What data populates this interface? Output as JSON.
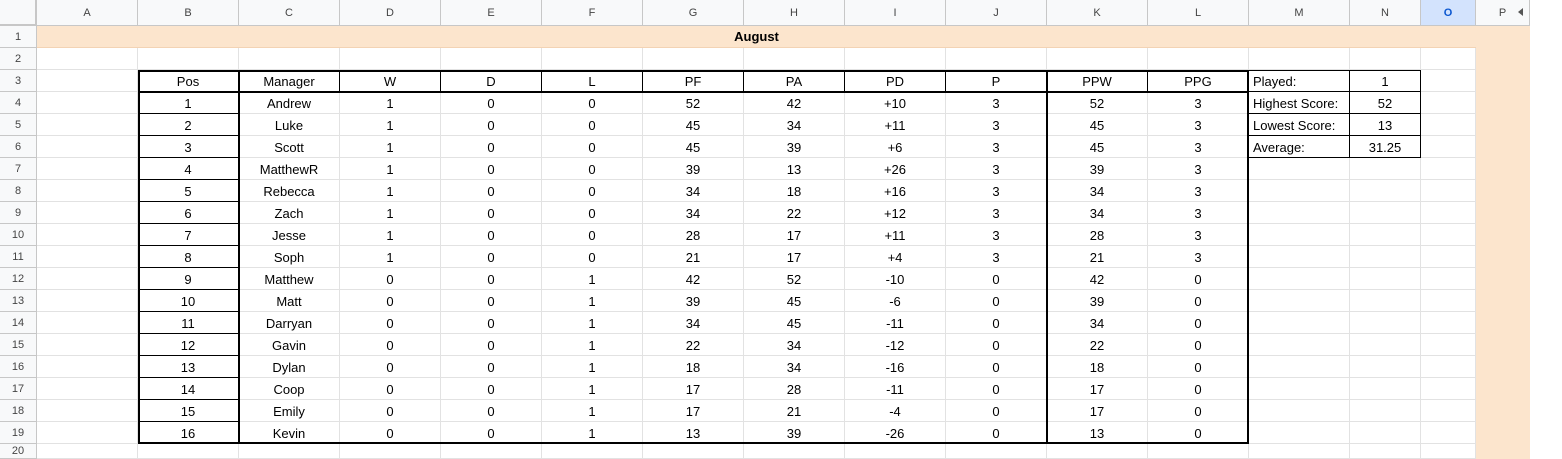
{
  "columns": [
    "A",
    "B",
    "C",
    "D",
    "E",
    "F",
    "G",
    "H",
    "I",
    "J",
    "K",
    "L",
    "M",
    "N",
    "O",
    "P"
  ],
  "selected_column": "O",
  "rows": [
    "1",
    "2",
    "3",
    "4",
    "5",
    "6",
    "7",
    "8",
    "9",
    "10",
    "11",
    "12",
    "13",
    "14",
    "15",
    "16",
    "17",
    "18",
    "19",
    "20"
  ],
  "title": "August",
  "table": {
    "headers": [
      "Pos",
      "Manager",
      "W",
      "D",
      "L",
      "PF",
      "PA",
      "PD",
      "P",
      "PPW",
      "PPG"
    ],
    "rows": [
      [
        "1",
        "Andrew",
        "1",
        "0",
        "0",
        "52",
        "42",
        "+10",
        "3",
        "52",
        "3"
      ],
      [
        "2",
        "Luke",
        "1",
        "0",
        "0",
        "45",
        "34",
        "+11",
        "3",
        "45",
        "3"
      ],
      [
        "3",
        "Scott",
        "1",
        "0",
        "0",
        "45",
        "39",
        "+6",
        "3",
        "45",
        "3"
      ],
      [
        "4",
        "MatthewR",
        "1",
        "0",
        "0",
        "39",
        "13",
        "+26",
        "3",
        "39",
        "3"
      ],
      [
        "5",
        "Rebecca",
        "1",
        "0",
        "0",
        "34",
        "18",
        "+16",
        "3",
        "34",
        "3"
      ],
      [
        "6",
        "Zach",
        "1",
        "0",
        "0",
        "34",
        "22",
        "+12",
        "3",
        "34",
        "3"
      ],
      [
        "7",
        "Jesse",
        "1",
        "0",
        "0",
        "28",
        "17",
        "+11",
        "3",
        "28",
        "3"
      ],
      [
        "8",
        "Soph",
        "1",
        "0",
        "0",
        "21",
        "17",
        "+4",
        "3",
        "21",
        "3"
      ],
      [
        "9",
        "Matthew",
        "0",
        "0",
        "1",
        "42",
        "52",
        "-10",
        "0",
        "42",
        "0"
      ],
      [
        "10",
        "Matt",
        "0",
        "0",
        "1",
        "39",
        "45",
        "-6",
        "0",
        "39",
        "0"
      ],
      [
        "11",
        "Darryan",
        "0",
        "0",
        "1",
        "34",
        "45",
        "-11",
        "0",
        "34",
        "0"
      ],
      [
        "12",
        "Gavin",
        "0",
        "0",
        "1",
        "22",
        "34",
        "-12",
        "0",
        "22",
        "0"
      ],
      [
        "13",
        "Dylan",
        "0",
        "0",
        "1",
        "18",
        "34",
        "-16",
        "0",
        "18",
        "0"
      ],
      [
        "14",
        "Coop",
        "0",
        "0",
        "1",
        "17",
        "28",
        "-11",
        "0",
        "17",
        "0"
      ],
      [
        "15",
        "Emily",
        "0",
        "0",
        "1",
        "17",
        "21",
        "-4",
        "0",
        "17",
        "0"
      ],
      [
        "16",
        "Kevin",
        "0",
        "0",
        "1",
        "13",
        "39",
        "-26",
        "0",
        "13",
        "0"
      ]
    ]
  },
  "stats": [
    {
      "label": "Played:",
      "value": "1"
    },
    {
      "label": "Highest Score:",
      "value": "52"
    },
    {
      "label": "Lowest Score:",
      "value": "13"
    },
    {
      "label": "Average:",
      "value": "31.25"
    }
  ],
  "colors": {
    "peach": "#fce5cd",
    "header_bg": "#f8f9fa",
    "selected_header": "#d3e3fd"
  }
}
